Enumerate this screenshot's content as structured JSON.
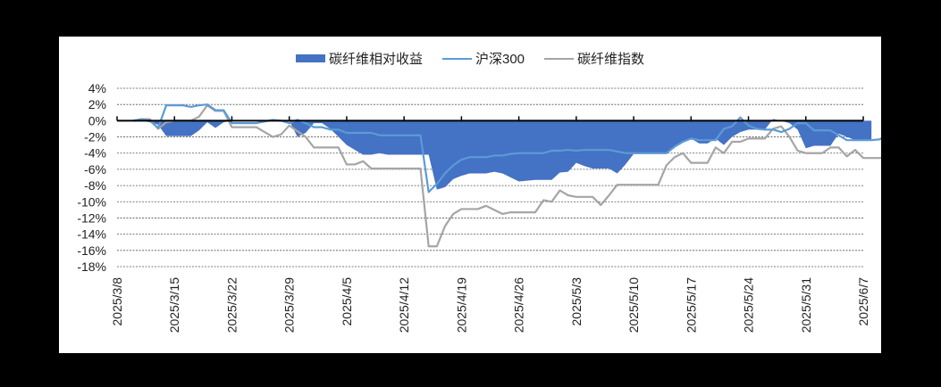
{
  "legend": {
    "items": [
      {
        "label": "碳纤维相对收益",
        "kind": "area",
        "color": "#4472C4"
      },
      {
        "label": "沪深300",
        "kind": "line",
        "color": "#5B9BD5"
      },
      {
        "label": "碳纤维指数",
        "kind": "line",
        "color": "#A5A5A5"
      }
    ]
  },
  "chart_data": {
    "type": "line",
    "title": "",
    "xlabel": "",
    "ylabel": "",
    "ylim": [
      -18,
      4
    ],
    "y_ticks": [
      "4%",
      "2%",
      "0%",
      "-2%",
      "-4%",
      "-6%",
      "-8%",
      "-10%",
      "-12%",
      "-14%",
      "-16%",
      "-18%"
    ],
    "y_tick_values": [
      4,
      2,
      0,
      -2,
      -4,
      -6,
      -8,
      -10,
      -12,
      -14,
      -16,
      -18
    ],
    "x_ticks": [
      "2025/3/8",
      "2025/3/15",
      "2025/3/22",
      "2025/3/29",
      "2025/4/5",
      "2025/4/12",
      "2025/4/19",
      "2025/4/26",
      "2025/5/3",
      "2025/5/10",
      "2025/5/17",
      "2025/5/24",
      "2025/5/31",
      "2025/6/7"
    ],
    "grid": "horizontal dashed",
    "legend_position": "top",
    "x_day_offsets_note": "days since 2025/3/8",
    "series": [
      {
        "name": "碳纤维相对收益",
        "type": "area",
        "color": "#4472C4",
        "points": [
          [
            2,
            0.1
          ],
          [
            3,
            0
          ],
          [
            4,
            -0.2
          ],
          [
            5,
            -0.5
          ],
          [
            6,
            -1.9
          ],
          [
            9,
            -1.9
          ],
          [
            10,
            -1.2
          ],
          [
            11,
            -0.2
          ],
          [
            12,
            -0.9
          ],
          [
            13,
            -0.2
          ],
          [
            14,
            0
          ],
          [
            16,
            0
          ],
          [
            17,
            0
          ],
          [
            18,
            0
          ],
          [
            19,
            0
          ],
          [
            20,
            0
          ],
          [
            21,
            0
          ],
          [
            22,
            -2.0
          ],
          [
            23,
            -1.5
          ],
          [
            24,
            -0.3
          ],
          [
            25,
            -0.3
          ],
          [
            26,
            -1.0
          ],
          [
            27,
            -2.0
          ],
          [
            28,
            -3.0
          ],
          [
            29,
            -3.6
          ],
          [
            30,
            -4.2
          ],
          [
            31,
            -4.2
          ],
          [
            32,
            -4.0
          ],
          [
            33,
            -4.2
          ],
          [
            34,
            -4.2
          ],
          [
            35,
            -4.2
          ],
          [
            36,
            -4.2
          ],
          [
            37,
            -4.2
          ],
          [
            38,
            -4.2
          ],
          [
            39,
            -8.5
          ],
          [
            40,
            -8.2
          ],
          [
            41,
            -7.2
          ],
          [
            42,
            -6.8
          ],
          [
            43,
            -6.5
          ],
          [
            44,
            -6.5
          ],
          [
            45,
            -6.5
          ],
          [
            46,
            -6.3
          ],
          [
            47,
            -6.5
          ],
          [
            48,
            -7.0
          ],
          [
            49,
            -7.5
          ],
          [
            50,
            -7.4
          ],
          [
            51,
            -7.3
          ],
          [
            52,
            -7.3
          ],
          [
            53,
            -7.3
          ],
          [
            54,
            -6.4
          ],
          [
            55,
            -6.3
          ],
          [
            56,
            -5.2
          ],
          [
            57,
            -5.6
          ],
          [
            58,
            -5.9
          ],
          [
            59,
            -5.9
          ],
          [
            60,
            -5.9
          ],
          [
            61,
            -6.5
          ],
          [
            62,
            -5.4
          ],
          [
            63,
            -4.1
          ],
          [
            64,
            -4.1
          ],
          [
            65,
            -4.1
          ],
          [
            66,
            -4.1
          ],
          [
            67,
            -4.1
          ],
          [
            68,
            -3.1
          ],
          [
            69,
            -2.5
          ],
          [
            70,
            -2.2
          ],
          [
            71,
            -2.8
          ],
          [
            72,
            -2.8
          ],
          [
            73,
            -2.2
          ],
          [
            74,
            -3.0
          ],
          [
            75,
            -2.0
          ],
          [
            76,
            -1.4
          ],
          [
            77,
            -1.1
          ],
          [
            78,
            -1.1
          ],
          [
            79,
            -1.1
          ],
          [
            80,
            0.2
          ],
          [
            81,
            0
          ],
          [
            82,
            -0.3
          ],
          [
            83,
            -1.1
          ],
          [
            84,
            -3.4
          ],
          [
            85,
            -3.1
          ],
          [
            86,
            -3.1
          ],
          [
            87,
            -3.1
          ],
          [
            88,
            -1.6
          ],
          [
            89,
            -2.0
          ],
          [
            90,
            -2.4
          ],
          [
            91,
            -2.4
          ],
          [
            92,
            -2.4
          ]
        ]
      },
      {
        "name": "沪深300",
        "type": "line",
        "color": "#5B9BD5",
        "points": [
          [
            2,
            0
          ],
          [
            3,
            0.2
          ],
          [
            4,
            0
          ],
          [
            5,
            -0.9
          ],
          [
            6,
            1.9
          ],
          [
            7,
            1.9
          ],
          [
            8,
            1.9
          ],
          [
            9,
            1.7
          ],
          [
            10,
            1.9
          ],
          [
            11,
            2.0
          ],
          [
            12,
            1.3
          ],
          [
            13,
            1.3
          ],
          [
            14,
            -0.3
          ],
          [
            17,
            -0.3
          ],
          [
            19,
            0.1
          ],
          [
            20,
            0
          ],
          [
            21,
            -0.3
          ],
          [
            22,
            0.1
          ],
          [
            23,
            -0.3
          ],
          [
            24,
            -0.8
          ],
          [
            25,
            -0.8
          ],
          [
            26,
            -1.1
          ],
          [
            27,
            -1.1
          ],
          [
            28,
            -1.5
          ],
          [
            29,
            -1.5
          ],
          [
            30,
            -1.5
          ],
          [
            31,
            -1.5
          ],
          [
            32,
            -1.8
          ],
          [
            33,
            -1.8
          ],
          [
            34,
            -1.8
          ],
          [
            35,
            -1.8
          ],
          [
            36,
            -1.8
          ],
          [
            37,
            -1.8
          ],
          [
            38,
            -8.8
          ],
          [
            39,
            -7.8
          ],
          [
            40,
            -6.5
          ],
          [
            41,
            -5.5
          ],
          [
            42,
            -4.8
          ],
          [
            43,
            -4.5
          ],
          [
            44,
            -4.5
          ],
          [
            45,
            -4.5
          ],
          [
            46,
            -4.3
          ],
          [
            47,
            -4.3
          ],
          [
            48,
            -4.1
          ],
          [
            49,
            -4.0
          ],
          [
            50,
            -4.0
          ],
          [
            51,
            -4.0
          ],
          [
            52,
            -4.0
          ],
          [
            53,
            -3.7
          ],
          [
            54,
            -3.7
          ],
          [
            55,
            -3.6
          ],
          [
            56,
            -3.7
          ],
          [
            57,
            -3.6
          ],
          [
            58,
            -3.6
          ],
          [
            59,
            -3.6
          ],
          [
            60,
            -3.6
          ],
          [
            61,
            -3.8
          ],
          [
            62,
            -4.0
          ],
          [
            63,
            -4.0
          ],
          [
            64,
            -4.0
          ],
          [
            65,
            -4.0
          ],
          [
            66,
            -4.0
          ],
          [
            67,
            -4.0
          ],
          [
            68,
            -3.2
          ],
          [
            69,
            -2.6
          ],
          [
            70,
            -2.2
          ],
          [
            71,
            -2.4
          ],
          [
            72,
            -2.4
          ],
          [
            73,
            -2.4
          ],
          [
            74,
            -1.0
          ],
          [
            75,
            -0.7
          ],
          [
            76,
            0.4
          ],
          [
            77,
            -0.6
          ],
          [
            78,
            -1.0
          ],
          [
            79,
            -1.1
          ],
          [
            80,
            -1.1
          ],
          [
            81,
            -1.4
          ],
          [
            82,
            -1.0
          ],
          [
            83,
            -0.3
          ],
          [
            84,
            -0.3
          ],
          [
            85,
            -1.2
          ],
          [
            86,
            -1.2
          ],
          [
            87,
            -1.2
          ],
          [
            88,
            -1.8
          ],
          [
            89,
            -2.4
          ],
          [
            90,
            -2.4
          ],
          [
            91,
            -2.4
          ],
          [
            92,
            -2.4
          ],
          [
            93,
            -2.3
          ],
          [
            94,
            -1.7
          ],
          [
            95,
            -1.4
          ],
          [
            96,
            -1.5
          ],
          [
            97,
            -1.5
          ]
        ]
      },
      {
        "name": "碳纤维指数",
        "type": "line",
        "color": "#A5A5A5",
        "points": [
          [
            2,
            0
          ],
          [
            3,
            0.2
          ],
          [
            4,
            0.2
          ],
          [
            5,
            -1.0
          ],
          [
            6,
            -0.2
          ],
          [
            7,
            0
          ],
          [
            8,
            0
          ],
          [
            9,
            0
          ],
          [
            10,
            0.5
          ],
          [
            11,
            1.9
          ],
          [
            12,
            1.2
          ],
          [
            13,
            1.2
          ],
          [
            14,
            -0.8
          ],
          [
            17,
            -0.8
          ],
          [
            19,
            -2.0
          ],
          [
            20,
            -1.7
          ],
          [
            21,
            -0.6
          ],
          [
            22,
            -1.3
          ],
          [
            23,
            -2.0
          ],
          [
            24,
            -3.3
          ],
          [
            25,
            -3.3
          ],
          [
            26,
            -3.3
          ],
          [
            27,
            -3.3
          ],
          [
            28,
            -5.4
          ],
          [
            29,
            -5.4
          ],
          [
            30,
            -5.0
          ],
          [
            31,
            -5.9
          ],
          [
            32,
            -5.9
          ],
          [
            33,
            -5.9
          ],
          [
            34,
            -5.9
          ],
          [
            35,
            -5.9
          ],
          [
            36,
            -5.9
          ],
          [
            37,
            -5.9
          ],
          [
            38,
            -15.5
          ],
          [
            39,
            -15.5
          ],
          [
            40,
            -13.0
          ],
          [
            41,
            -11.5
          ],
          [
            42,
            -10.9
          ],
          [
            43,
            -10.9
          ],
          [
            44,
            -10.9
          ],
          [
            45,
            -10.5
          ],
          [
            46,
            -11.0
          ],
          [
            47,
            -11.5
          ],
          [
            48,
            -11.3
          ],
          [
            49,
            -11.3
          ],
          [
            50,
            -11.3
          ],
          [
            51,
            -11.3
          ],
          [
            52,
            -9.8
          ],
          [
            53,
            -10.0
          ],
          [
            54,
            -8.6
          ],
          [
            55,
            -9.2
          ],
          [
            56,
            -9.4
          ],
          [
            57,
            -9.4
          ],
          [
            58,
            -9.4
          ],
          [
            59,
            -10.4
          ],
          [
            60,
            -9.2
          ],
          [
            61,
            -7.9
          ],
          [
            62,
            -7.9
          ],
          [
            63,
            -7.9
          ],
          [
            64,
            -7.9
          ],
          [
            65,
            -7.9
          ],
          [
            66,
            -7.9
          ],
          [
            67,
            -5.5
          ],
          [
            68,
            -4.5
          ],
          [
            69,
            -4.0
          ],
          [
            70,
            -5.2
          ],
          [
            71,
            -5.2
          ],
          [
            72,
            -5.2
          ],
          [
            73,
            -3.3
          ],
          [
            74,
            -4.0
          ],
          [
            75,
            -2.6
          ],
          [
            76,
            -2.6
          ],
          [
            77,
            -2.2
          ],
          [
            78,
            -2.2
          ],
          [
            79,
            -2.2
          ],
          [
            80,
            -1.0
          ],
          [
            81,
            -0.7
          ],
          [
            82,
            -2.0
          ],
          [
            83,
            -3.7
          ],
          [
            84,
            -4.0
          ],
          [
            85,
            -4.0
          ],
          [
            86,
            -4.0
          ],
          [
            87,
            -3.3
          ],
          [
            88,
            -3.3
          ],
          [
            89,
            -4.4
          ],
          [
            90,
            -3.6
          ],
          [
            91,
            -4.6
          ],
          [
            92,
            -4.6
          ],
          [
            93,
            -4.6
          ],
          [
            94,
            -4.5
          ],
          [
            95,
            -3.8
          ],
          [
            96,
            -3.9
          ],
          [
            97,
            -4.0
          ]
        ]
      }
    ]
  }
}
